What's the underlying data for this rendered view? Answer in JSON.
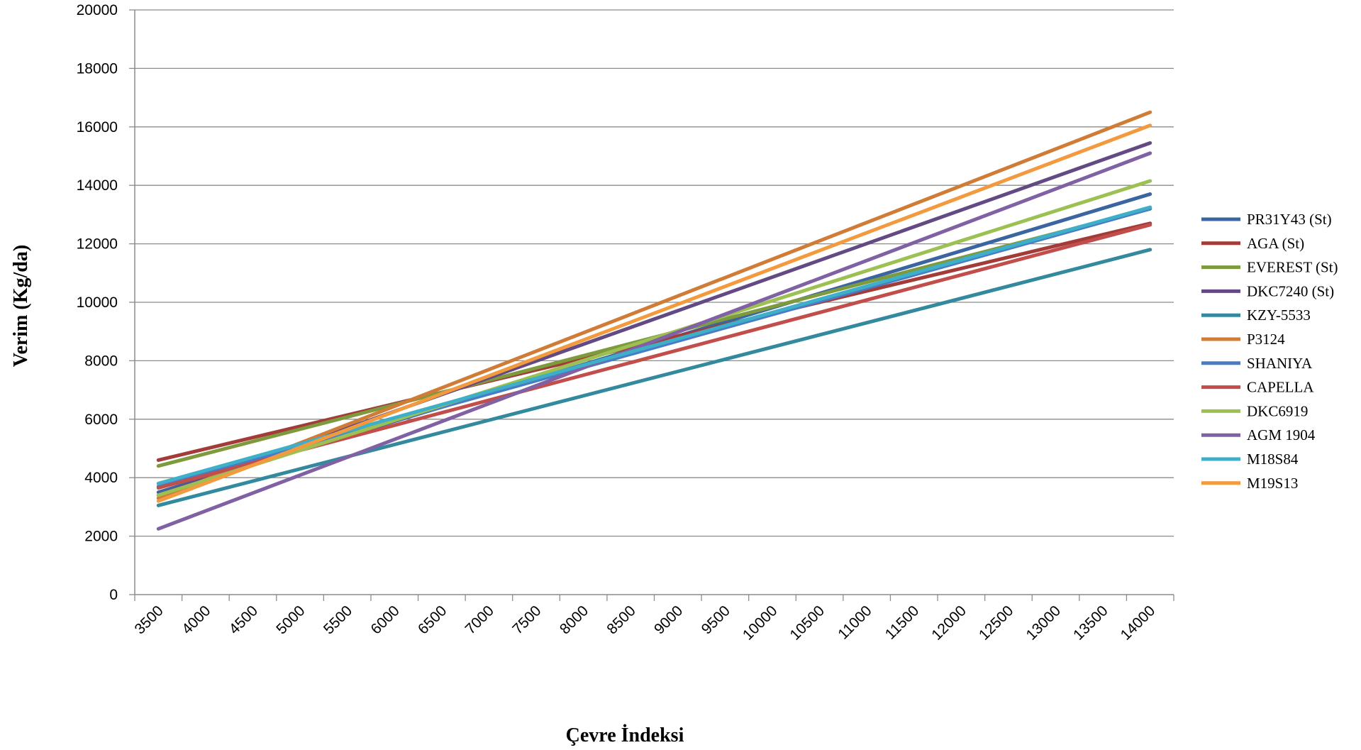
{
  "chart_data": {
    "type": "line",
    "title": "",
    "xlabel": "Çevre İndeksi",
    "ylabel": "Verim (Kg/da)",
    "x_ticks": [
      "3500",
      "4000",
      "4500",
      "5000",
      "5500",
      "6000",
      "6500",
      "7000",
      "7500",
      "8000",
      "8500",
      "9000",
      "9500",
      "10000",
      "10500",
      "11000",
      "11500",
      "12000",
      "12500",
      "13000",
      "13500",
      "14000"
    ],
    "xlim": [
      3250,
      14250
    ],
    "ylim": [
      0,
      20000
    ],
    "y_ticks": [
      0,
      2000,
      4000,
      6000,
      8000,
      10000,
      12000,
      14000,
      16000,
      18000,
      20000
    ],
    "grid": "horizontal",
    "legend_position": "right",
    "x": [
      3500,
      14000
    ],
    "series": [
      {
        "name": "PR31Y43 (St)",
        "color": "#3A65A0",
        "values": [
          3500,
          13700
        ]
      },
      {
        "name": "AGA (St)",
        "color": "#A33B38",
        "values": [
          4600,
          12700
        ]
      },
      {
        "name": "EVEREST (St)",
        "color": "#7D9A3D",
        "values": [
          4400,
          13200
        ]
      },
      {
        "name": "DKC7240 (St)",
        "color": "#634A84",
        "values": [
          3400,
          15450
        ]
      },
      {
        "name": "KZY-5533",
        "color": "#338A9E",
        "values": [
          3050,
          11800
        ]
      },
      {
        "name": "P3124",
        "color": "#D07C36",
        "values": [
          3300,
          16500
        ]
      },
      {
        "name": "SHANIYA",
        "color": "#4A7BC5",
        "values": [
          3700,
          13200
        ]
      },
      {
        "name": "CAPELLA",
        "color": "#C24E4B",
        "values": [
          3650,
          12650
        ]
      },
      {
        "name": "DKC6919",
        "color": "#9CC152",
        "values": [
          3400,
          14150
        ]
      },
      {
        "name": "AGM 1904",
        "color": "#8062A4",
        "values": [
          2250,
          15100
        ]
      },
      {
        "name": "M18S84",
        "color": "#3EAFC8",
        "values": [
          3800,
          13250
        ]
      },
      {
        "name": "M19S13",
        "color": "#F39A3E",
        "values": [
          3200,
          16050
        ]
      }
    ]
  }
}
